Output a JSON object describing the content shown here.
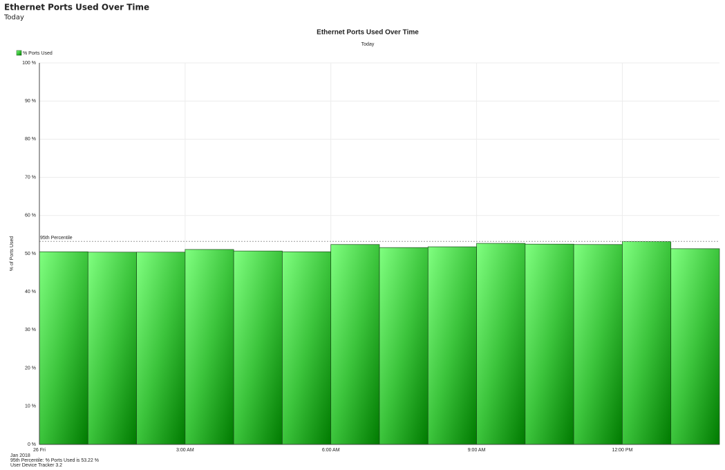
{
  "header": {
    "title": "Ethernet Ports Used Over Time",
    "subtitle": "Today"
  },
  "chart_data": {
    "type": "bar",
    "title": "Ethernet Ports Used Over Time",
    "subtitle": "Today",
    "ylabel": "% of Ports Used",
    "x": [
      0,
      1,
      2,
      3,
      4,
      5,
      6,
      7,
      8,
      9,
      10,
      11,
      12,
      13
    ],
    "xlim": [
      0,
      14
    ],
    "xticks": [
      {
        "value": 0,
        "label": "26 Fri"
      },
      {
        "value": 3,
        "label": "3:00 AM"
      },
      {
        "value": 6,
        "label": "6:00 AM"
      },
      {
        "value": 9,
        "label": "9:00 AM"
      },
      {
        "value": 12,
        "label": "12:00 PM"
      }
    ],
    "x_sublabel": "Jan 2018",
    "series": [
      {
        "name": "% Ports Used",
        "color": "#3cc43c",
        "values": [
          50.5,
          50.4,
          50.4,
          51.1,
          50.7,
          50.5,
          52.4,
          51.6,
          51.8,
          52.7,
          52.5,
          52.4,
          53.2,
          51.3
        ]
      }
    ],
    "ylim": [
      0,
      100
    ],
    "yticks": [
      {
        "value": 0,
        "label": "0 %"
      },
      {
        "value": 10,
        "label": "10 %"
      },
      {
        "value": 20,
        "label": "20 %"
      },
      {
        "value": 30,
        "label": "30 %"
      },
      {
        "value": 40,
        "label": "40 %"
      },
      {
        "value": 50,
        "label": "50 %"
      },
      {
        "value": 60,
        "label": "60 %"
      },
      {
        "value": 70,
        "label": "70 %"
      },
      {
        "value": 80,
        "label": "80 %"
      },
      {
        "value": 90,
        "label": "90 %"
      },
      {
        "value": 100,
        "label": "100 %"
      }
    ],
    "grid": true,
    "legend": "top-left",
    "reference_line": {
      "label": "95th Percentile",
      "value": 53.22
    },
    "footnotes": [
      "95th Percentile: % Ports Used is 53.22 %",
      "User Device Tracker 3.2"
    ]
  }
}
